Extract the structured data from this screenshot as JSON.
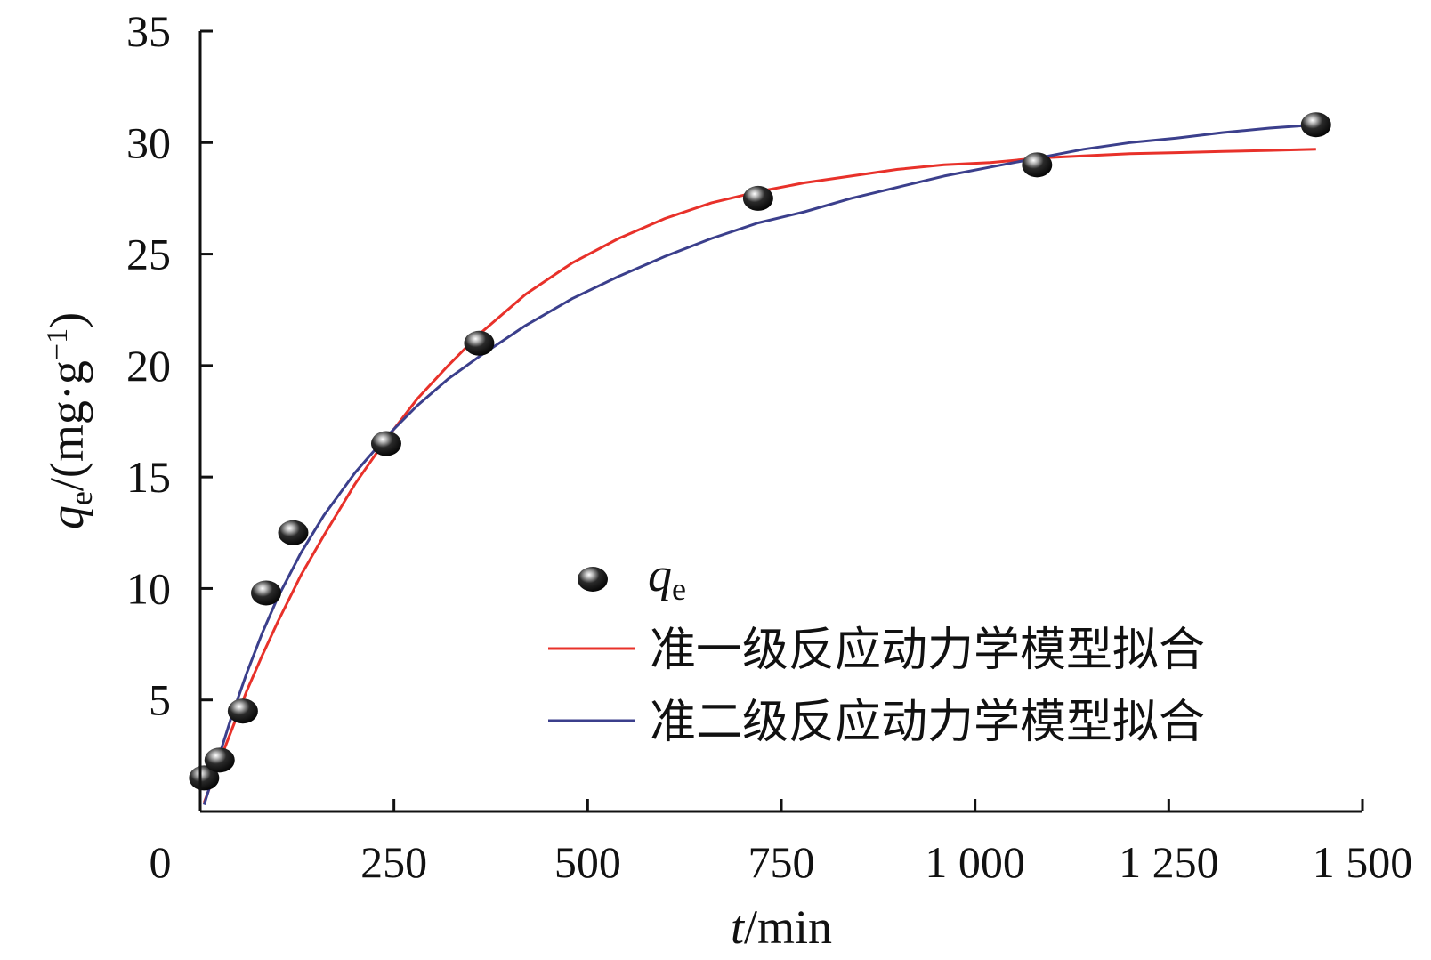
{
  "chart_data": {
    "type": "scatter",
    "xlabel_var": "t",
    "xlabel_unit": "/min",
    "ylabel_var": "q",
    "ylabel_sub": "e",
    "ylabel_unit": "/(mg·g",
    "ylabel_sup": "−1",
    "ylabel_close": ")",
    "xlim": [
      0,
      1500
    ],
    "ylim": [
      0,
      35
    ],
    "xticks": [
      0,
      250,
      500,
      750,
      1000,
      1250,
      1500
    ],
    "xtick_labels": [
      "0",
      "250",
      "500",
      "750",
      "1 000",
      "1 250",
      "1 500"
    ],
    "yticks": [
      5,
      10,
      15,
      20,
      25,
      30,
      35
    ],
    "ytick_labels": [
      "5",
      "10",
      "15",
      "20",
      "25",
      "30",
      "35"
    ],
    "grid": false,
    "legend_position": "bottom-right",
    "series": [
      {
        "name": "q",
        "name_sub": "e",
        "kind": "scatter",
        "color": "#111111",
        "x": [
          5,
          25,
          55,
          85,
          120,
          240,
          360,
          720,
          1080,
          1440
        ],
        "y": [
          1.5,
          2.3,
          4.5,
          9.8,
          12.5,
          16.5,
          21.0,
          27.5,
          29.0,
          30.8
        ]
      },
      {
        "name": "准一级反应动力学模型拟合",
        "kind": "line",
        "color": "#e8312a",
        "x": [
          5,
          20,
          40,
          60,
          80,
          100,
          130,
          160,
          200,
          240,
          280,
          320,
          360,
          420,
          480,
          540,
          600,
          660,
          720,
          780,
          840,
          900,
          960,
          1020,
          1080,
          1140,
          1200,
          1260,
          1320,
          1380,
          1440
        ],
        "y": [
          0.4,
          1.8,
          3.6,
          5.4,
          7.0,
          8.5,
          10.6,
          12.4,
          14.7,
          16.7,
          18.5,
          20.0,
          21.4,
          23.2,
          24.6,
          25.7,
          26.6,
          27.3,
          27.8,
          28.2,
          28.5,
          28.8,
          29.0,
          29.1,
          29.3,
          29.4,
          29.5,
          29.55,
          29.6,
          29.65,
          29.7
        ]
      },
      {
        "name": "准二级反应动力学模型拟合",
        "kind": "line",
        "color": "#3b3f8c",
        "x": [
          5,
          20,
          40,
          60,
          80,
          100,
          130,
          160,
          200,
          240,
          280,
          320,
          360,
          420,
          480,
          540,
          600,
          660,
          720,
          780,
          840,
          900,
          960,
          1020,
          1080,
          1140,
          1200,
          1260,
          1320,
          1380,
          1440
        ],
        "y": [
          0.3,
          2.0,
          4.2,
          6.2,
          8.0,
          9.6,
          11.6,
          13.3,
          15.2,
          16.8,
          18.2,
          19.4,
          20.4,
          21.8,
          23.0,
          24.0,
          24.9,
          25.7,
          26.4,
          26.9,
          27.5,
          28.0,
          28.5,
          28.9,
          29.3,
          29.7,
          30.0,
          30.2,
          30.45,
          30.65,
          30.8
        ]
      }
    ]
  }
}
